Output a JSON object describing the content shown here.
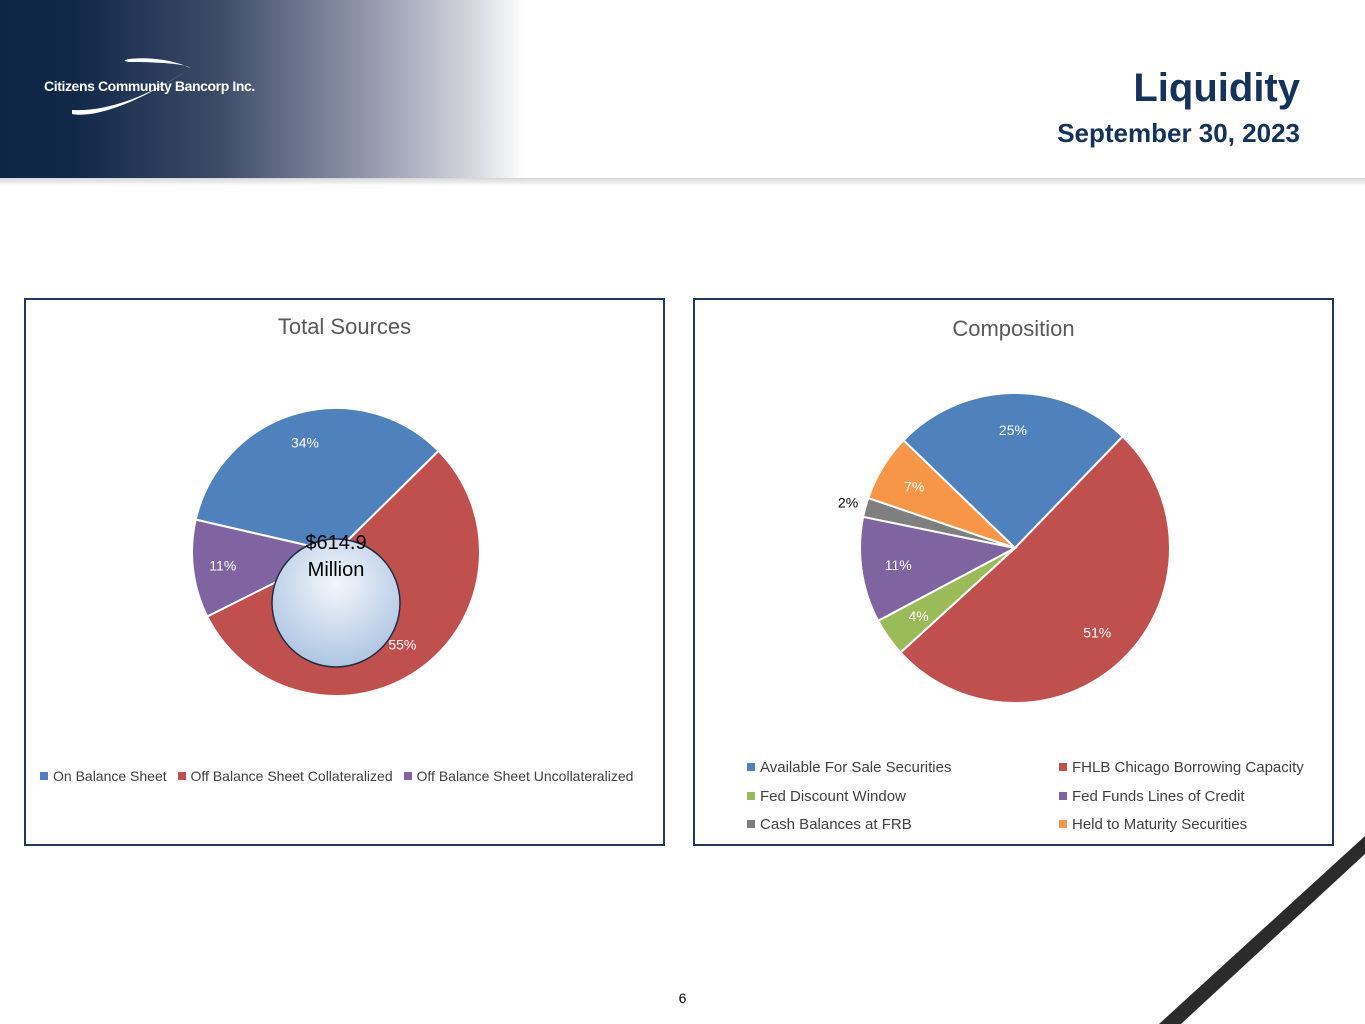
{
  "header": {
    "logo_text": "Citizens Community Bancorp Inc.",
    "title": "Liquidity",
    "subtitle": "September 30, 2023"
  },
  "colors": {
    "blue": "#4f81bd",
    "red": "#c0504d",
    "purple": "#8064a2",
    "green": "#9bbb59",
    "gray": "#7f7f7f",
    "orange": "#f79646",
    "navy": "#14325a"
  },
  "page_number": "6",
  "chart_data": [
    {
      "type": "pie",
      "title": "Total Sources",
      "center_label_line1": "$614.9",
      "center_label_line2": "Million",
      "categories": [
        "On Balance Sheet",
        "Off Balance Sheet Collateralized",
        "Off Balance Sheet Uncollateralized"
      ],
      "values": [
        34,
        55,
        11
      ],
      "labels": [
        "34%",
        "55%",
        "11%"
      ],
      "colors": [
        "#4f81bd",
        "#c0504d",
        "#8064a2"
      ],
      "legend_position": "bottom"
    },
    {
      "type": "pie",
      "title": "Composition",
      "categories": [
        "Available For Sale Securities",
        "FHLB Chicago Borrowing Capacity",
        "Fed Discount Window",
        "Fed Funds Lines of Credit",
        "Cash Balances at FRB",
        "Held to Maturity Securities"
      ],
      "values": [
        25,
        51,
        4,
        11,
        2,
        7
      ],
      "labels": [
        "25%",
        "51%",
        "4%",
        "11%",
        "2%",
        "7%"
      ],
      "colors": [
        "#4f81bd",
        "#c0504d",
        "#9bbb59",
        "#8064a2",
        "#7f7f7f",
        "#f79646"
      ],
      "legend_position": "bottom"
    }
  ]
}
